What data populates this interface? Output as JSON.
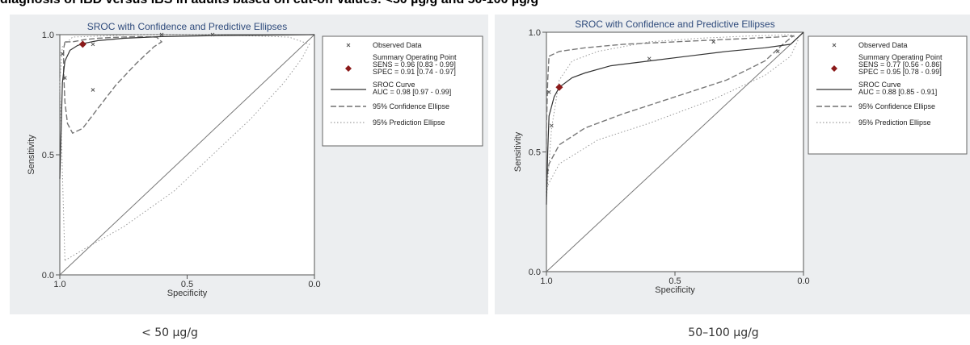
{
  "heading": "diagnosis of IBD versus IBS in adults based on cut-off values: <50 µg/g and 50-100 µg/g",
  "legend_labels": {
    "observed": "Observed Data",
    "summary": "Summary Operating Point",
    "sroc": "SROC Curve",
    "confidence": "95% Confidence Ellipse",
    "prediction": "95% Prediction Ellipse"
  },
  "colors": {
    "panel_bg": "#eceef0",
    "title": "#2f4b7c",
    "summary_point": "#8b1a1a",
    "observed": "#555555"
  },
  "chart_data": [
    {
      "type": "line",
      "title": "SROC with Confidence and Predictive Ellipses",
      "caption": "< 50 µg/g",
      "xlabel": "Specificity",
      "ylabel": "Sensitivity",
      "xlim": [
        1.0,
        0.0
      ],
      "ylim": [
        0.0,
        1.0
      ],
      "x_ticks": [
        "1.0",
        "0.5",
        "0.0"
      ],
      "y_ticks": [
        "1.0",
        "0.5",
        "0.0"
      ],
      "legend": {
        "sens": "SENS = 0.96 [0.83 - 0.99]",
        "spec": "SPEC = 0.91 [0.74 - 0.97]",
        "auc": "AUC = 0.98 [0.97 - 0.99]"
      },
      "summary_point": {
        "spec": 0.91,
        "sens": 0.96
      },
      "observed": [
        [
          0.87,
          0.96
        ],
        [
          0.87,
          0.77
        ],
        [
          0.98,
          0.82
        ],
        [
          0.99,
          0.92
        ],
        [
          0.6,
          1.0
        ],
        [
          0.4,
          1.0
        ]
      ],
      "sroc": [
        [
          1.0,
          0.4
        ],
        [
          0.99,
          0.8
        ],
        [
          0.98,
          0.89
        ],
        [
          0.96,
          0.935
        ],
        [
          0.93,
          0.955
        ],
        [
          0.9,
          0.965
        ],
        [
          0.85,
          0.975
        ],
        [
          0.75,
          0.985
        ],
        [
          0.6,
          0.992
        ],
        [
          0.4,
          0.996
        ],
        [
          0.2,
          0.998
        ],
        [
          0.0,
          1.0
        ]
      ],
      "confidence": [
        [
          0.98,
          0.97
        ],
        [
          0.95,
          0.97
        ],
        [
          0.9,
          0.98
        ],
        [
          0.85,
          0.985
        ],
        [
          0.8,
          0.988
        ],
        [
          0.7,
          0.992
        ],
        [
          0.62,
          0.99
        ],
        [
          0.6,
          0.97
        ],
        [
          0.63,
          0.95
        ],
        [
          0.7,
          0.88
        ],
        [
          0.78,
          0.79
        ],
        [
          0.86,
          0.68
        ],
        [
          0.91,
          0.61
        ],
        [
          0.95,
          0.59
        ],
        [
          0.97,
          0.63
        ],
        [
          0.98,
          0.72
        ],
        [
          0.985,
          0.85
        ],
        [
          0.985,
          0.94
        ],
        [
          0.98,
          0.97
        ]
      ],
      "prediction": [
        [
          0.98,
          0.06
        ],
        [
          0.9,
          0.11
        ],
        [
          0.75,
          0.2
        ],
        [
          0.55,
          0.35
        ],
        [
          0.4,
          0.5
        ],
        [
          0.25,
          0.65
        ],
        [
          0.12,
          0.8
        ],
        [
          0.05,
          0.9
        ],
        [
          0.02,
          0.96
        ],
        [
          0.1,
          0.99
        ],
        [
          0.4,
          1.0
        ],
        [
          0.7,
          1.0
        ],
        [
          0.95,
          0.99
        ],
        [
          0.99,
          0.95
        ],
        [
          1.0,
          0.8
        ]
      ]
    },
    {
      "type": "line",
      "title": "SROC with Confidence and Predictive Ellipses",
      "caption": "50–100 µg/g",
      "xlabel": "Specificity",
      "ylabel": "Sensitivity",
      "xlim": [
        1.0,
        0.0
      ],
      "ylim": [
        0.0,
        1.0
      ],
      "x_ticks": [
        "1.0",
        "0.5",
        "0.0"
      ],
      "y_ticks": [
        "1.0",
        "0.5",
        "0.0"
      ],
      "legend": {
        "sens": "SENS = 0.77 [0.56 - 0.86]",
        "spec": "SPEC = 0.95 [0.78 - 0.99]",
        "auc": "AUC = 0.88 [0.85 - 0.91]"
      },
      "summary_point": {
        "spec": 0.95,
        "sens": 0.77
      },
      "observed": [
        [
          0.98,
          0.61
        ],
        [
          0.99,
          0.75
        ],
        [
          0.6,
          0.89
        ],
        [
          0.35,
          0.96
        ],
        [
          0.1,
          0.92
        ]
      ],
      "sroc": [
        [
          1.0,
          0.28
        ],
        [
          0.995,
          0.5
        ],
        [
          0.99,
          0.65
        ],
        [
          0.97,
          0.73
        ],
        [
          0.95,
          0.77
        ],
        [
          0.9,
          0.81
        ],
        [
          0.85,
          0.83
        ],
        [
          0.75,
          0.86
        ],
        [
          0.6,
          0.88
        ],
        [
          0.45,
          0.9
        ],
        [
          0.3,
          0.92
        ],
        [
          0.15,
          0.935
        ],
        [
          0.05,
          0.95
        ],
        [
          0.0,
          1.0
        ]
      ],
      "confidence": [
        [
          0.99,
          0.9
        ],
        [
          0.95,
          0.92
        ],
        [
          0.85,
          0.935
        ],
        [
          0.7,
          0.95
        ],
        [
          0.5,
          0.96
        ],
        [
          0.3,
          0.97
        ],
        [
          0.1,
          0.98
        ],
        [
          0.04,
          0.985
        ],
        [
          0.08,
          0.95
        ],
        [
          0.15,
          0.88
        ],
        [
          0.3,
          0.8
        ],
        [
          0.5,
          0.73
        ],
        [
          0.7,
          0.66
        ],
        [
          0.85,
          0.6
        ],
        [
          0.95,
          0.53
        ],
        [
          0.99,
          0.45
        ],
        [
          1.0,
          0.38
        ],
        [
          1.0,
          0.6
        ],
        [
          0.995,
          0.8
        ],
        [
          0.99,
          0.9
        ]
      ],
      "prediction": [
        [
          1.0,
          0.3
        ],
        [
          0.98,
          0.6
        ],
        [
          0.95,
          0.8
        ],
        [
          0.9,
          0.88
        ],
        [
          0.8,
          0.92
        ],
        [
          0.6,
          0.96
        ],
        [
          0.4,
          0.975
        ],
        [
          0.2,
          0.985
        ],
        [
          0.05,
          0.99
        ],
        [
          0.02,
          0.97
        ],
        [
          0.05,
          0.9
        ],
        [
          0.15,
          0.82
        ],
        [
          0.35,
          0.72
        ],
        [
          0.6,
          0.62
        ],
        [
          0.8,
          0.55
        ],
        [
          0.95,
          0.45
        ],
        [
          1.0,
          0.35
        ]
      ]
    }
  ]
}
